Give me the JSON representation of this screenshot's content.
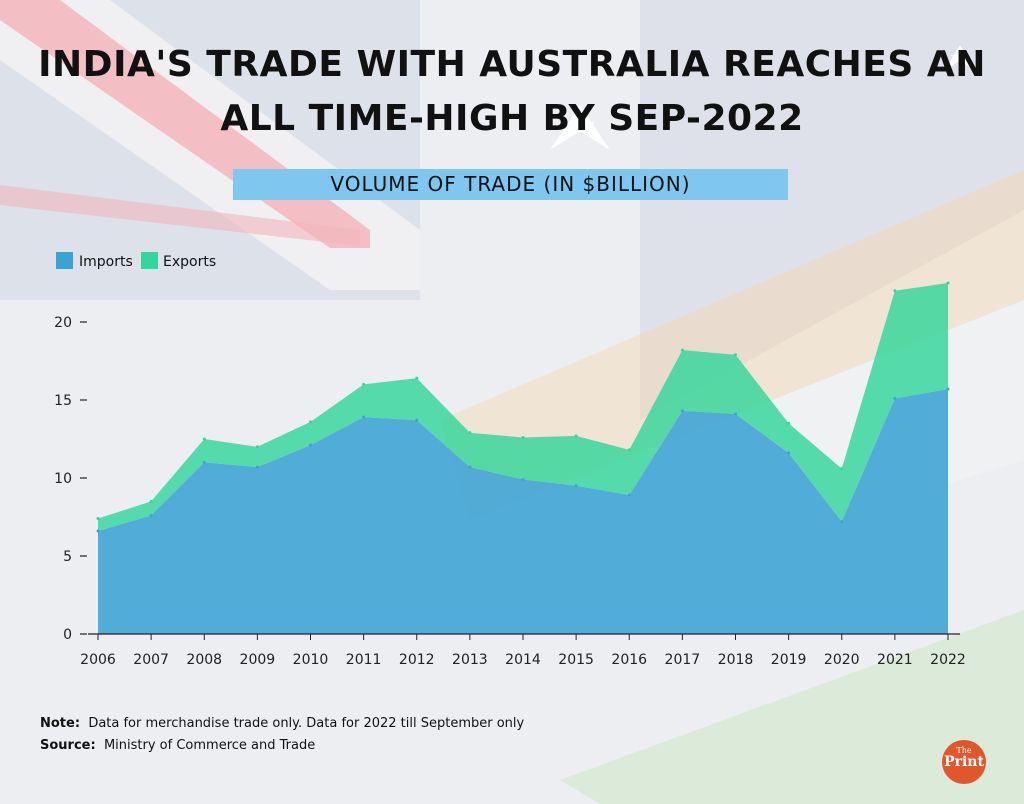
{
  "header": {
    "title_line1": "INDIA'S TRADE WITH AUSTRALIA REACHES AN",
    "title_line2": "ALL TIME-HIGH BY SEP-2022",
    "subtitle": "VOLUME OF TRADE (IN $BILLION)"
  },
  "colors": {
    "imports": "#3ba3d4",
    "exports": "#33d69b",
    "subtitle_band": "#80c7f0",
    "logo": "#e0572e"
  },
  "chart_data": {
    "type": "area",
    "stacked": true,
    "x": [
      "2006",
      "2007",
      "2008",
      "2009",
      "2010",
      "2011",
      "2012",
      "2013",
      "2014",
      "2015",
      "2016",
      "2017",
      "2018",
      "2019",
      "2020",
      "2021",
      "2022"
    ],
    "series": [
      {
        "name": "Imports",
        "values": [
          6.6,
          7.6,
          11.0,
          10.7,
          12.1,
          13.9,
          13.7,
          10.7,
          9.9,
          9.5,
          8.9,
          14.3,
          14.1,
          11.6,
          7.2,
          15.1,
          15.7
        ]
      },
      {
        "name": "Exports",
        "values": [
          0.8,
          0.9,
          1.5,
          1.3,
          1.5,
          2.1,
          2.7,
          2.2,
          2.7,
          3.2,
          2.9,
          3.9,
          3.8,
          1.9,
          3.4,
          6.9,
          6.8
        ]
      }
    ],
    "yticks": [
      0,
      5,
      10,
      15,
      20
    ],
    "ylim": [
      0,
      24
    ],
    "legend_position": "top-left",
    "grid": false
  },
  "footer": {
    "note_label": "Note:",
    "note_text": "Data for merchandise trade only. Data for 2022 till September only",
    "source_label": "Source:",
    "source_text": "Ministry of Commerce and Trade"
  },
  "logo": {
    "small": "The",
    "main": "Print"
  }
}
